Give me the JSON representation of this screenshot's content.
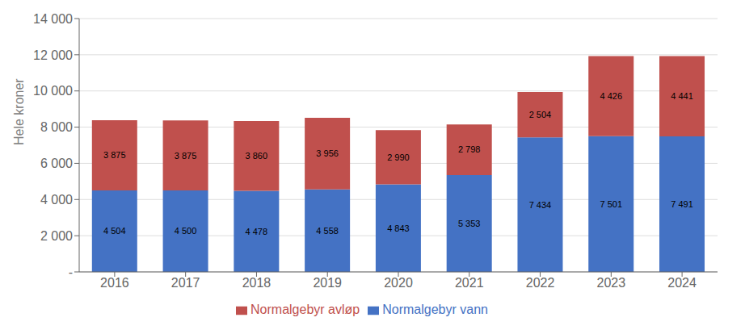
{
  "chart_data": {
    "type": "bar",
    "stacked": true,
    "categories": [
      "2016",
      "2017",
      "2018",
      "2019",
      "2020",
      "2021",
      "2022",
      "2023",
      "2024"
    ],
    "series": [
      {
        "name": "Normalgebyr vann",
        "color": "#4472C4",
        "values": [
          4504,
          4500,
          4478,
          4558,
          4843,
          5353,
          7434,
          7501,
          7491
        ],
        "value_labels": [
          "4 504",
          "4 500",
          "4 478",
          "4 558",
          "4 843",
          "5 353",
          "7 434",
          "7 501",
          "7 491"
        ]
      },
      {
        "name": "Normalgebyr avløp",
        "color": "#C0504D",
        "values": [
          3875,
          3875,
          3860,
          3956,
          2990,
          2798,
          2504,
          4426,
          4441
        ],
        "value_labels": [
          "3 875",
          "3 875",
          "3 860",
          "3 956",
          "2 990",
          "2 798",
          "2 504",
          "4 426",
          "4 441"
        ]
      }
    ],
    "ylabel": "Hele kroner",
    "ylim": [
      0,
      14000
    ],
    "yticks": [
      {
        "value": 0,
        "label": "-"
      },
      {
        "value": 2000,
        "label": "2 000"
      },
      {
        "value": 4000,
        "label": "4 000"
      },
      {
        "value": 6000,
        "label": "6 000"
      },
      {
        "value": 8000,
        "label": "8 000"
      },
      {
        "value": 10000,
        "label": "10 000"
      },
      {
        "value": 12000,
        "label": "12 000"
      },
      {
        "value": 14000,
        "label": "14 000"
      }
    ],
    "grid": true,
    "data_labels": true,
    "legend": "bottom"
  }
}
